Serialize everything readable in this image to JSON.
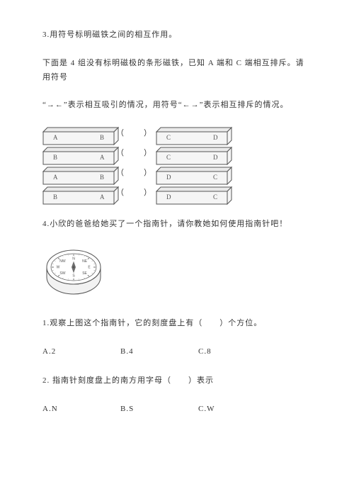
{
  "colors": {
    "text": "#333333",
    "barStroke": "#555555",
    "barFill": "#f5f5f5",
    "barTopFill": "#eaeaea",
    "compassStroke": "#555555",
    "compassFill": "#f2f2f2",
    "compassFaceFill": "#ffffff"
  },
  "q3": {
    "title": "3.用符号标明磁铁之间的相互作用。",
    "line1": "下面是 4 组没有标明磁极的条形磁铁，已知 A 端和 C 端相互排斥。请用符号",
    "line2": "“→←”表示相互吸引的情况，用符号“←→”表示相互排斥的情况。",
    "bars": {
      "depth": 6,
      "width": 100,
      "height": 18,
      "labelFontSize": 9
    },
    "rows": [
      {
        "left": [
          "A",
          "B"
        ],
        "right": [
          "C",
          "D"
        ],
        "paren": "（　　）"
      },
      {
        "left": [
          "B",
          "A"
        ],
        "right": [
          "C",
          "D"
        ],
        "paren": "（　　）"
      },
      {
        "left": [
          "A",
          "B"
        ],
        "right": [
          "D",
          "C"
        ],
        "paren": "（　　）"
      },
      {
        "left": [
          "B",
          "A"
        ],
        "right": [
          "D",
          "C"
        ],
        "paren": "（　　）"
      }
    ]
  },
  "q4": {
    "title": "4.小欣的爸爸给她买了一个指南针，请你教她如何使用指南针吧！",
    "compass": {
      "dirs": [
        "N",
        "NE",
        "E",
        "SE",
        "S",
        "SW",
        "W",
        "NW"
      ],
      "width": 90,
      "height": 60
    },
    "sub1": {
      "text": "1.观察上图这个指南针，它的刻度盘上有（　　）个方位。",
      "options": {
        "A": "A.2",
        "B": "B.4",
        "C": "C.8"
      }
    },
    "sub2": {
      "text": "2.  指南针刻度盘上的南方用字母（　　）表示",
      "options": {
        "A": "A.N",
        "B": "B.S",
        "C": "C.W"
      }
    }
  }
}
